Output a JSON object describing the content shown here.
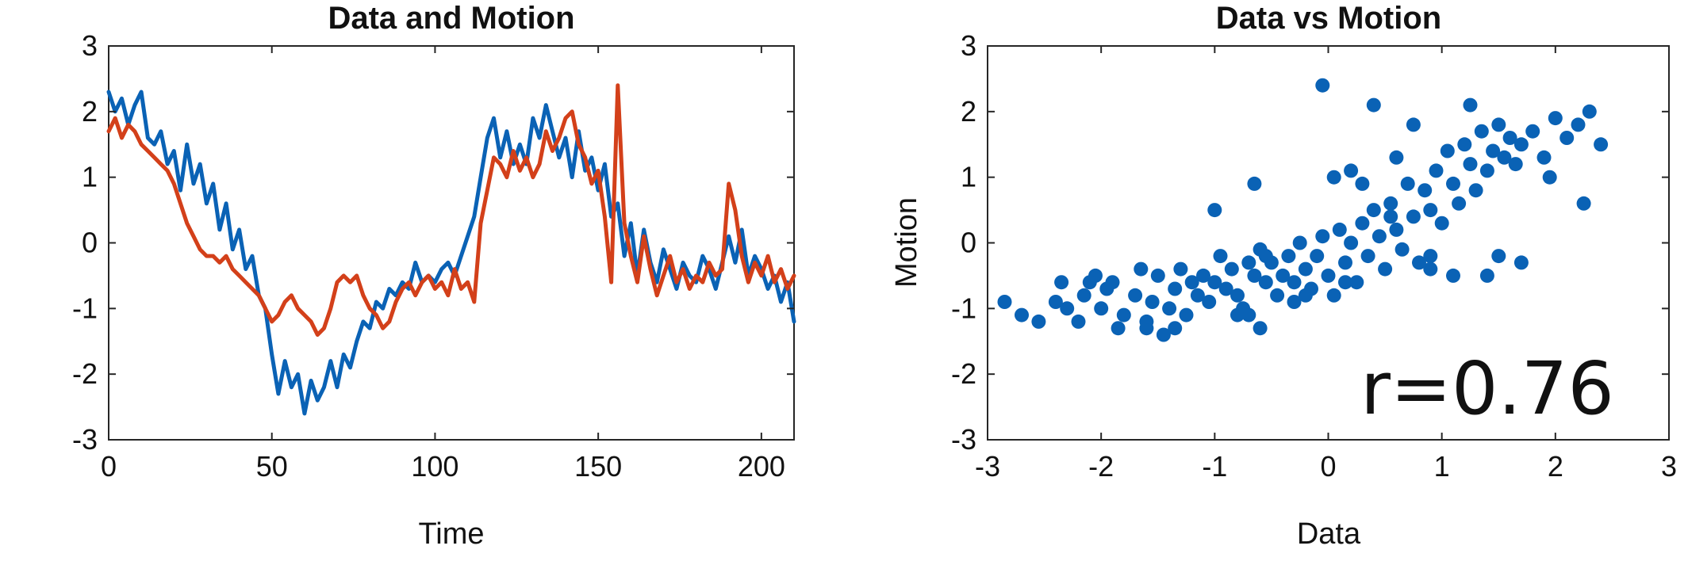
{
  "colors": {
    "data": "#0a62b5",
    "motion": "#d3401a",
    "axis": "#262626",
    "text": "#111111"
  },
  "chart_data": [
    {
      "type": "line",
      "title": "Data and Motion",
      "xlabel": "Time",
      "ylabel": "",
      "xlim": [
        0,
        210
      ],
      "ylim": [
        -3,
        3
      ],
      "xticks": [
        0,
        50,
        100,
        150,
        200
      ],
      "yticks": [
        -3,
        -2,
        -1,
        0,
        1,
        2,
        3
      ],
      "grid": false,
      "legend": "none",
      "series": [
        {
          "color_key": "data",
          "x": [
            0,
            2,
            4,
            6,
            8,
            10,
            12,
            14,
            16,
            18,
            20,
            22,
            24,
            26,
            28,
            30,
            32,
            34,
            36,
            38,
            40,
            42,
            44,
            46,
            48,
            50,
            52,
            54,
            56,
            58,
            60,
            62,
            64,
            66,
            68,
            70,
            72,
            74,
            76,
            78,
            80,
            82,
            84,
            86,
            88,
            90,
            92,
            94,
            96,
            98,
            100,
            102,
            104,
            106,
            108,
            110,
            112,
            114,
            116,
            118,
            120,
            122,
            124,
            126,
            128,
            130,
            132,
            134,
            136,
            138,
            140,
            142,
            144,
            146,
            148,
            150,
            152,
            154,
            156,
            158,
            160,
            162,
            164,
            166,
            168,
            170,
            172,
            174,
            176,
            178,
            180,
            182,
            184,
            186,
            188,
            190,
            192,
            194,
            196,
            198,
            200,
            202,
            204,
            206,
            208,
            210
          ],
          "values": [
            2.3,
            2.0,
            2.2,
            1.8,
            2.1,
            2.3,
            1.6,
            1.5,
            1.7,
            1.2,
            1.4,
            0.8,
            1.5,
            0.9,
            1.2,
            0.6,
            0.9,
            0.2,
            0.6,
            -0.1,
            0.2,
            -0.4,
            -0.2,
            -0.8,
            -1.0,
            -1.7,
            -2.3,
            -1.8,
            -2.2,
            -2.0,
            -2.6,
            -2.1,
            -2.4,
            -2.2,
            -1.8,
            -2.2,
            -1.7,
            -1.9,
            -1.5,
            -1.2,
            -1.3,
            -0.9,
            -1.0,
            -0.7,
            -0.8,
            -0.6,
            -0.7,
            -0.3,
            -0.6,
            -0.5,
            -0.6,
            -0.4,
            -0.3,
            -0.5,
            -0.2,
            0.1,
            0.4,
            1.0,
            1.6,
            1.9,
            1.3,
            1.7,
            1.2,
            1.5,
            1.2,
            1.9,
            1.6,
            2.1,
            1.7,
            1.3,
            1.6,
            1.0,
            1.7,
            1.1,
            1.3,
            0.8,
            1.2,
            0.4,
            0.6,
            -0.2,
            0.3,
            -0.5,
            0.2,
            -0.3,
            -0.6,
            -0.1,
            -0.4,
            -0.7,
            -0.3,
            -0.5,
            -0.6,
            -0.2,
            -0.4,
            -0.7,
            -0.3,
            0.1,
            -0.3,
            0.2,
            -0.5,
            -0.2,
            -0.4,
            -0.7,
            -0.5,
            -0.9,
            -0.6,
            -1.2
          ]
        },
        {
          "color_key": "motion",
          "x": [
            0,
            2,
            4,
            6,
            8,
            10,
            12,
            14,
            16,
            18,
            20,
            22,
            24,
            26,
            28,
            30,
            32,
            34,
            36,
            38,
            40,
            42,
            44,
            46,
            48,
            50,
            52,
            54,
            56,
            58,
            60,
            62,
            64,
            66,
            68,
            70,
            72,
            74,
            76,
            78,
            80,
            82,
            84,
            86,
            88,
            90,
            92,
            94,
            96,
            98,
            100,
            102,
            104,
            106,
            108,
            110,
            112,
            114,
            116,
            118,
            120,
            122,
            124,
            126,
            128,
            130,
            132,
            134,
            136,
            138,
            140,
            142,
            144,
            146,
            148,
            150,
            152,
            154,
            156,
            158,
            160,
            162,
            164,
            166,
            168,
            170,
            172,
            174,
            176,
            178,
            180,
            182,
            184,
            186,
            188,
            190,
            192,
            194,
            196,
            198,
            200,
            202,
            204,
            206,
            208,
            210
          ],
          "values": [
            1.7,
            1.9,
            1.6,
            1.8,
            1.7,
            1.5,
            1.4,
            1.3,
            1.2,
            1.1,
            0.9,
            0.6,
            0.3,
            0.1,
            -0.1,
            -0.2,
            -0.2,
            -0.3,
            -0.2,
            -0.4,
            -0.5,
            -0.6,
            -0.7,
            -0.8,
            -1.0,
            -1.2,
            -1.1,
            -0.9,
            -0.8,
            -1.0,
            -1.1,
            -1.2,
            -1.4,
            -1.3,
            -1.0,
            -0.6,
            -0.5,
            -0.6,
            -0.5,
            -0.8,
            -1.0,
            -1.1,
            -1.3,
            -1.2,
            -0.9,
            -0.7,
            -0.6,
            -0.8,
            -0.6,
            -0.5,
            -0.7,
            -0.6,
            -0.8,
            -0.4,
            -0.7,
            -0.6,
            -0.9,
            0.3,
            0.8,
            1.3,
            1.2,
            1.0,
            1.4,
            1.1,
            1.3,
            1.0,
            1.2,
            1.7,
            1.4,
            1.6,
            1.9,
            2.0,
            1.5,
            1.3,
            0.9,
            1.1,
            0.4,
            -0.6,
            2.4,
            0.3,
            -0.2,
            -0.6,
            0.1,
            -0.4,
            -0.8,
            -0.5,
            -0.2,
            -0.6,
            -0.4,
            -0.7,
            -0.5,
            -0.6,
            -0.3,
            -0.5,
            -0.4,
            0.9,
            0.5,
            -0.2,
            -0.6,
            -0.3,
            -0.5,
            -0.2,
            -0.6,
            -0.4,
            -0.7,
            -0.5
          ]
        }
      ]
    },
    {
      "type": "scatter",
      "title": "Data vs Motion",
      "xlabel": "Data",
      "ylabel": "Motion",
      "xlim": [
        -3,
        3
      ],
      "ylim": [
        -3,
        3
      ],
      "xticks": [
        -3,
        -2,
        -1,
        0,
        1,
        2,
        3
      ],
      "yticks": [
        -3,
        -2,
        -1,
        0,
        1,
        2,
        3
      ],
      "grid": false,
      "legend": "none",
      "annotation": "r=0.76",
      "series": [
        {
          "color_key": "data",
          "x": [
            -2.85,
            -2.7,
            -2.55,
            -2.4,
            -2.35,
            -2.3,
            -2.2,
            -2.15,
            -2.05,
            -2.0,
            -1.95,
            -1.9,
            -1.85,
            -1.8,
            -1.7,
            -1.65,
            -1.6,
            -1.55,
            -1.5,
            -1.45,
            -1.4,
            -1.35,
            -1.3,
            -1.25,
            -1.2,
            -1.15,
            -1.1,
            -1.05,
            -1.0,
            -0.95,
            -0.9,
            -0.85,
            -0.8,
            -0.75,
            -0.7,
            -0.65,
            -0.6,
            -0.55,
            -0.5,
            -0.45,
            -0.4,
            -0.35,
            -0.3,
            -0.25,
            -0.2,
            -0.15,
            -0.1,
            -0.05,
            0.0,
            0.05,
            0.1,
            0.15,
            0.2,
            0.25,
            0.3,
            0.35,
            0.4,
            0.45,
            0.5,
            0.55,
            0.6,
            0.65,
            0.7,
            0.75,
            0.8,
            0.85,
            0.9,
            0.95,
            1.0,
            1.05,
            1.1,
            1.15,
            1.2,
            1.25,
            1.3,
            1.35,
            1.4,
            1.45,
            1.5,
            1.55,
            1.6,
            1.65,
            1.7,
            1.8,
            1.9,
            2.0,
            2.1,
            2.2,
            2.3,
            2.4,
            -0.05,
            0.4,
            0.75,
            1.25,
            -1.0,
            -0.65,
            -0.55,
            -0.6,
            -0.3,
            0.05,
            0.3,
            0.55,
            1.4,
            1.7,
            -0.8,
            -0.2,
            0.2,
            0.6,
            0.9,
            1.1,
            -1.35,
            -1.6,
            -2.1,
            -0.7,
            0.15,
            0.9,
            1.5,
            1.95,
            2.25
          ],
          "values": [
            -0.9,
            -1.1,
            -1.2,
            -0.9,
            -0.6,
            -1.0,
            -1.2,
            -0.8,
            -0.5,
            -1.0,
            -0.7,
            -0.6,
            -1.3,
            -1.1,
            -0.8,
            -0.4,
            -1.3,
            -0.9,
            -0.5,
            -1.4,
            -1.0,
            -0.7,
            -0.4,
            -1.1,
            -0.6,
            -0.8,
            -0.5,
            -0.9,
            -0.6,
            -0.2,
            -0.7,
            -0.4,
            -0.8,
            -1.0,
            -0.3,
            -0.5,
            -0.1,
            -0.6,
            -0.3,
            -0.8,
            -0.5,
            -0.2,
            -0.6,
            0.0,
            -0.4,
            -0.7,
            -0.2,
            0.1,
            -0.5,
            -0.8,
            0.2,
            -0.3,
            0.0,
            -0.6,
            0.3,
            -0.2,
            0.5,
            0.1,
            -0.4,
            0.6,
            0.2,
            -0.1,
            0.9,
            0.4,
            -0.3,
            0.8,
            0.5,
            1.1,
            0.3,
            1.4,
            0.9,
            0.6,
            1.5,
            1.2,
            0.8,
            1.7,
            1.1,
            1.4,
            1.8,
            1.3,
            1.6,
            1.2,
            1.5,
            1.7,
            1.3,
            1.9,
            1.6,
            1.8,
            2.0,
            1.5,
            2.4,
            2.1,
            1.8,
            2.1,
            0.5,
            0.9,
            -0.2,
            -1.3,
            -0.9,
            1.0,
            0.9,
            0.4,
            -0.5,
            -0.3,
            -1.1,
            -0.8,
            1.1,
            1.3,
            -0.2,
            -0.5,
            -1.3,
            -1.2,
            -0.6,
            -1.1,
            -0.6,
            -0.4,
            -0.2,
            1.0,
            0.6
          ]
        }
      ]
    }
  ]
}
